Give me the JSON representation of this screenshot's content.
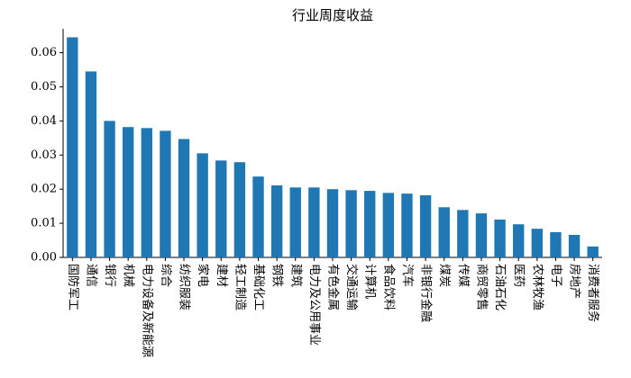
{
  "chart_data": {
    "type": "bar",
    "title": "行业周度收益",
    "categories": [
      "国防军工",
      "通信",
      "银行",
      "机械",
      "电力设备及新能源",
      "综合",
      "纺织服装",
      "家电",
      "建材",
      "轻工制造",
      "基础化工",
      "钢铁",
      "建筑",
      "电力及公用事业",
      "有色金属",
      "交通运输",
      "计算机",
      "食品饮料",
      "汽车",
      "非银行金融",
      "煤炭",
      "传媒",
      "商贸零售",
      "石油石化",
      "医药",
      "农林牧渔",
      "电子",
      "房地产",
      "消费者服务"
    ],
    "values": [
      0.0645,
      0.0545,
      0.04,
      0.0382,
      0.0379,
      0.0371,
      0.0347,
      0.0305,
      0.0284,
      0.0279,
      0.0237,
      0.0211,
      0.0205,
      0.0205,
      0.02,
      0.0197,
      0.0195,
      0.0189,
      0.0187,
      0.0182,
      0.0147,
      0.0139,
      0.0129,
      0.0111,
      0.0097,
      0.0084,
      0.0074,
      0.0066,
      0.0032
    ],
    "color": "#1f77b4",
    "ylim": [
      0,
      0.067
    ],
    "yticks": [
      {
        "value": 0,
        "label": "0.00"
      },
      {
        "value": 0.01,
        "label": "0.01"
      },
      {
        "value": 0.02,
        "label": "0.02"
      },
      {
        "value": 0.03,
        "label": "0.03"
      },
      {
        "value": 0.04,
        "label": "0.04"
      },
      {
        "value": 0.05,
        "label": "0.05"
      },
      {
        "value": 0.06,
        "label": "0.06"
      }
    ]
  }
}
